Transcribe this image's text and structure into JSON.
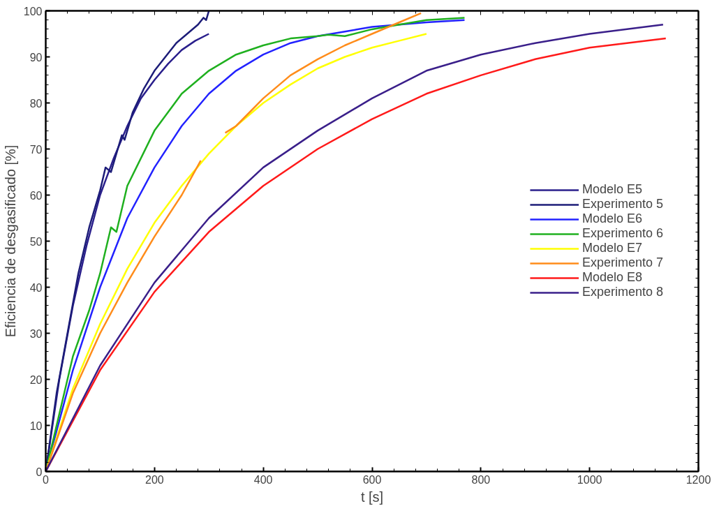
{
  "chart_data": {
    "type": "line",
    "xlabel": "t [s]",
    "ylabel": "Eficiencia de desgasificado [%]",
    "xlim": [
      0,
      1200
    ],
    "ylim": [
      0,
      100
    ],
    "xticks": [
      0,
      200,
      400,
      600,
      800,
      1000,
      1200
    ],
    "yticks": [
      0,
      10,
      20,
      30,
      40,
      50,
      60,
      70,
      80,
      90,
      100
    ],
    "grid": false,
    "legend": "right",
    "line_style": "solid",
    "marker": "none",
    "series": [
      {
        "name": "Modelo E5",
        "color": "#2a1f8c",
        "x": [
          0,
          25,
          50,
          75,
          100,
          125,
          150,
          175,
          200,
          225,
          250,
          275,
          300
        ],
        "values": [
          0,
          20,
          36,
          49,
          60,
          68,
          75,
          81,
          85,
          88.5,
          91.5,
          93.5,
          95
        ]
      },
      {
        "name": "Experimento 5",
        "color": "#1c1c78",
        "x": [
          0,
          20,
          40,
          60,
          80,
          100,
          110,
          120,
          140,
          145,
          160,
          180,
          200,
          220,
          240,
          260,
          280,
          290,
          295,
          300
        ],
        "values": [
          0,
          17,
          30,
          43,
          53,
          61,
          66,
          65,
          73,
          72,
          78,
          83,
          87,
          90,
          93,
          95,
          97,
          98.5,
          98,
          100
        ]
      },
      {
        "name": "Modelo E6",
        "color": "#2222ff",
        "x": [
          0,
          50,
          100,
          150,
          200,
          250,
          300,
          350,
          400,
          450,
          500,
          550,
          600,
          700,
          770
        ],
        "values": [
          0,
          22,
          40,
          55,
          66,
          75,
          82,
          87,
          90.5,
          93,
          94.5,
          95.5,
          96.5,
          97.5,
          98
        ]
      },
      {
        "name": "Experimento 6",
        "color": "#1fb01f",
        "x": [
          0,
          50,
          80,
          100,
          120,
          130,
          150,
          200,
          250,
          300,
          350,
          400,
          450,
          500,
          520,
          550,
          600,
          650,
          700,
          770
        ],
        "values": [
          0,
          25,
          35,
          43,
          53,
          52,
          62,
          74,
          82,
          87,
          90.5,
          92.5,
          94,
          94.5,
          94.8,
          94.5,
          96,
          97,
          98,
          98.5
        ]
      },
      {
        "name": "Modelo E7",
        "color": "#ffff00",
        "x": [
          0,
          50,
          100,
          150,
          200,
          250,
          300,
          350,
          400,
          450,
          500,
          550,
          600,
          650,
          700
        ],
        "values": [
          0,
          18,
          32,
          44,
          54,
          62,
          69,
          75,
          80,
          84,
          87.5,
          90,
          92,
          93.5,
          95
        ]
      },
      {
        "name": "Experimento 7",
        "color": "#ff8c1a",
        "x": [
          0,
          50,
          100,
          150,
          200,
          250,
          285,
          310,
          330,
          350,
          400,
          450,
          500,
          550,
          600,
          650,
          690
        ],
        "values": [
          0,
          17,
          30,
          41,
          51,
          60,
          67.5,
          null,
          73.5,
          75,
          81,
          86,
          89.5,
          92.5,
          95,
          97.5,
          99.5
        ]
      },
      {
        "name": "Modelo E8",
        "color": "#ff1a1a",
        "x": [
          0,
          100,
          200,
          300,
          400,
          500,
          600,
          700,
          800,
          900,
          1000,
          1140
        ],
        "values": [
          0,
          22,
          39,
          52,
          62,
          70,
          76.5,
          82,
          86,
          89.5,
          92,
          94
        ]
      },
      {
        "name": "Experimento 8",
        "color": "#3a1f8a",
        "x": [
          0,
          100,
          200,
          300,
          400,
          500,
          600,
          700,
          800,
          900,
          1000,
          1135
        ],
        "values": [
          0,
          23,
          41,
          55,
          66,
          74,
          81,
          87,
          90.5,
          93,
          95,
          97
        ]
      }
    ]
  }
}
